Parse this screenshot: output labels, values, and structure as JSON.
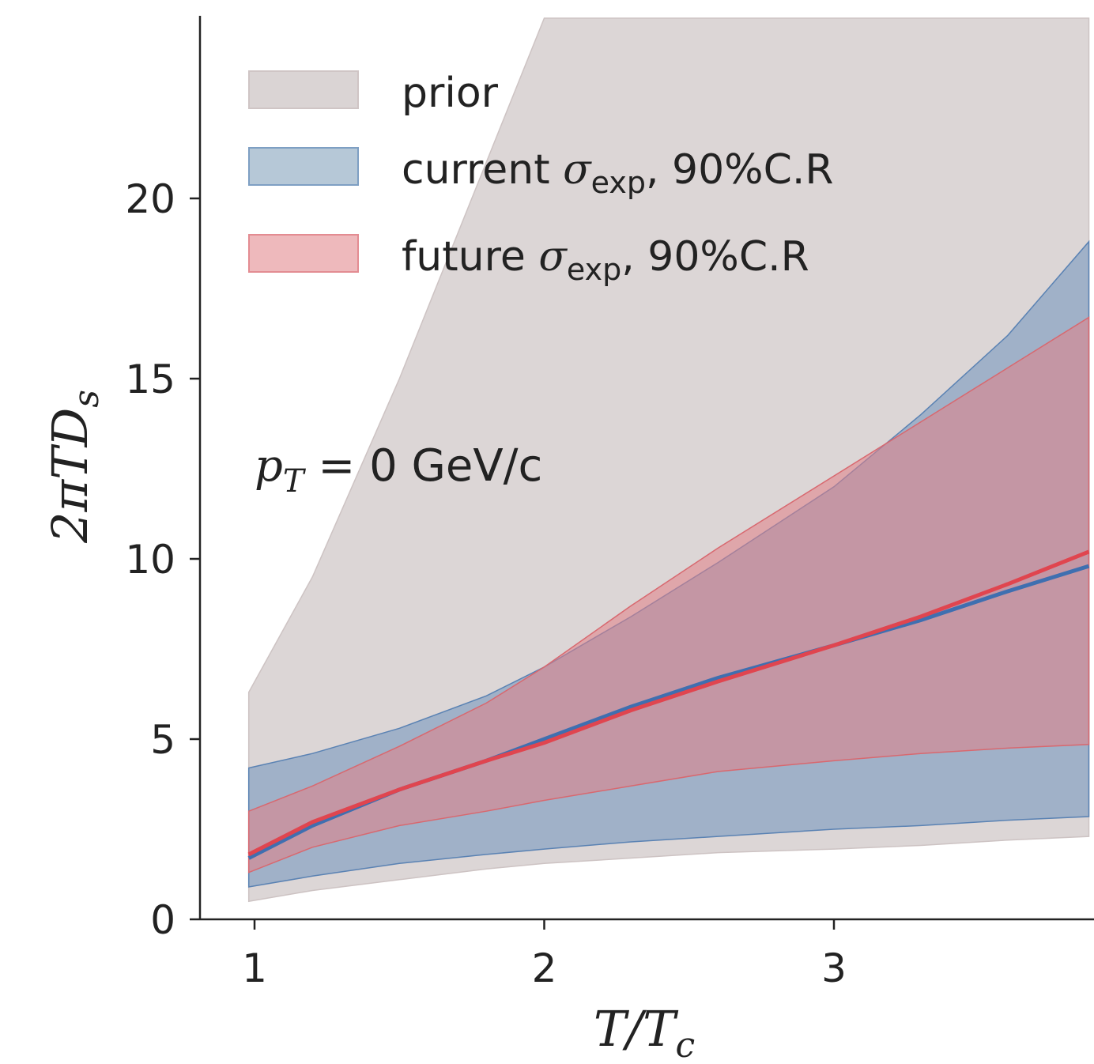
{
  "chart_data": {
    "type": "area",
    "xlabel_main": "T/T",
    "xlabel_sub": "c",
    "ylabel_main": "2πTD",
    "ylabel_sub": "s",
    "xlim": [
      0.82,
      3.88
    ],
    "ylim": [
      0,
      25
    ],
    "xticks": [
      1,
      2,
      3
    ],
    "yticks": [
      0,
      5,
      10,
      15,
      20
    ],
    "grid": false,
    "legend_position": "top-left",
    "annotation": {
      "var": "p",
      "sub": "T",
      "rest": " = 0 GeV/c"
    },
    "x": [
      0.98,
      1.2,
      1.5,
      1.8,
      2.0,
      2.3,
      2.6,
      3.0,
      3.3,
      3.6,
      3.88
    ],
    "series": [
      {
        "name": "prior",
        "color": "#d8d2d2",
        "lower": [
          0.5,
          0.8,
          1.1,
          1.4,
          1.55,
          1.7,
          1.85,
          1.95,
          2.05,
          2.2,
          2.3
        ],
        "upper": [
          6.3,
          9.5,
          15.0,
          21.0,
          25.0,
          25.0,
          25.0,
          25.0,
          25.0,
          25.0,
          25.0
        ]
      },
      {
        "name": "current σexp, 90%C.R",
        "legend_main": "current ",
        "legend_sym": "σ",
        "legend_sub": "exp",
        "legend_tail": ", 90%C.R",
        "color": "#6f93bd",
        "median_color": "#3f6fb0",
        "lower": [
          0.9,
          1.2,
          1.55,
          1.8,
          1.95,
          2.15,
          2.3,
          2.5,
          2.6,
          2.75,
          2.85
        ],
        "upper": [
          4.2,
          4.6,
          5.3,
          6.2,
          7.0,
          8.4,
          9.9,
          12.0,
          14.0,
          16.2,
          18.8
        ],
        "median": [
          1.7,
          2.6,
          3.6,
          4.4,
          5.0,
          5.9,
          6.7,
          7.6,
          8.3,
          9.1,
          9.8
        ]
      },
      {
        "name": "future σexp, 90%C.R",
        "legend_main": "future ",
        "legend_sym": "σ",
        "legend_sub": "exp",
        "legend_tail": ", 90%C.R",
        "color": "#e27f86",
        "median_color": "#e0454f",
        "lower": [
          1.3,
          2.0,
          2.6,
          3.0,
          3.3,
          3.7,
          4.1,
          4.4,
          4.6,
          4.75,
          4.85
        ],
        "upper": [
          3.0,
          3.7,
          4.8,
          6.0,
          7.0,
          8.7,
          10.3,
          12.3,
          13.8,
          15.3,
          16.7
        ],
        "median": [
          1.8,
          2.7,
          3.6,
          4.4,
          4.9,
          5.8,
          6.6,
          7.6,
          8.4,
          9.3,
          10.2
        ]
      }
    ]
  }
}
